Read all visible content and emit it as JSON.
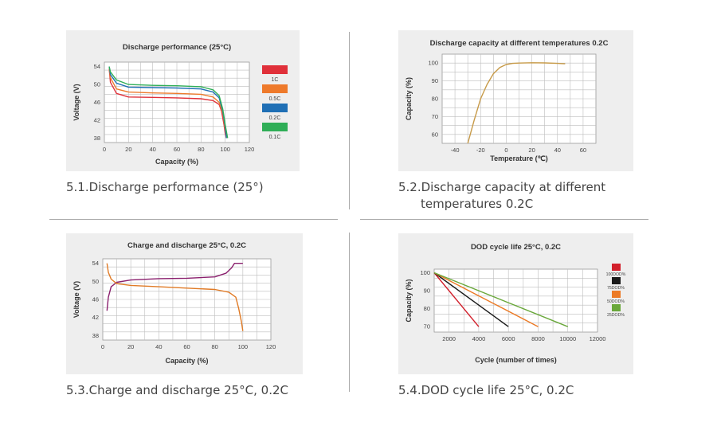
{
  "charts": [
    {
      "caption": "5.1.Discharge performance (25°)",
      "chart_data": {
        "type": "line",
        "title": "Discharge performance (25°C)",
        "xlabel": "Capacity (%)",
        "ylabel": "Voltage (V)",
        "xlim": [
          0,
          120
        ],
        "ylim": [
          37,
          55
        ],
        "xticks": [
          0,
          20,
          40,
          60,
          80,
          100,
          120
        ],
        "yticks": [
          38,
          42,
          46,
          50,
          54
        ],
        "legend": "right",
        "series": [
          {
            "name": "1C",
            "color": "#e0303a",
            "x": [
              4,
              5,
              10,
              20,
              40,
              60,
              80,
              90,
              95,
              97,
              99,
              100,
              101
            ],
            "y": [
              53.5,
              50.5,
              48.0,
              47.2,
              47.1,
              47.0,
              46.8,
              46.4,
              45.5,
              44.0,
              41.0,
              39.0,
              38.0
            ]
          },
          {
            "name": "0.5C",
            "color": "#ee7a2b",
            "x": [
              4,
              5,
              10,
              20,
              40,
              60,
              80,
              90,
              95,
              98,
              100,
              101
            ],
            "y": [
              53.5,
              51.5,
              49.0,
              48.3,
              48.1,
              48.0,
              47.8,
              47.2,
              46.0,
              43.5,
              40.0,
              38.0
            ]
          },
          {
            "name": "0.2C",
            "color": "#1f6fb5",
            "x": [
              4,
              5,
              10,
              20,
              40,
              60,
              80,
              90,
              95,
              98,
              100,
              101
            ],
            "y": [
              54.0,
              52.2,
              50.3,
              49.4,
              49.3,
              49.2,
              49.0,
              48.3,
              47.0,
              44.0,
              40.5,
              38.0
            ]
          },
          {
            "name": "0.1C",
            "color": "#2fae57",
            "x": [
              4,
              5,
              10,
              20,
              40,
              60,
              80,
              90,
              95,
              98,
              100,
              102
            ],
            "y": [
              54.0,
              52.8,
              51.0,
              50.0,
              49.8,
              49.7,
              49.5,
              48.8,
              47.5,
              44.5,
              41.0,
              38.0
            ]
          }
        ]
      }
    },
    {
      "caption": "5.2.Discharge capacity at different",
      "caption2": "temperatures 0.2C",
      "chart_data": {
        "type": "line",
        "title": "Discharge capacity at different temperatures 0.2C",
        "xlabel": "Temperature (℃)",
        "ylabel": "Capacity (%)",
        "xlim": [
          -50,
          70
        ],
        "ylim": [
          55,
          105
        ],
        "xticks": [
          -40,
          -20,
          0,
          20,
          40,
          60
        ],
        "yticks": [
          60,
          70,
          80,
          90,
          100
        ],
        "series": [
          {
            "name": "",
            "color": "#c79a48",
            "x": [
              -30,
              -25,
              -20,
              -15,
              -10,
              -5,
              0,
              5,
              10,
              20,
              30,
              40,
              46
            ],
            "y": [
              55,
              68,
              80,
              88,
              94,
              97.5,
              99.2,
              99.8,
              100,
              100.2,
              100.1,
              99.8,
              99.6
            ]
          }
        ]
      }
    },
    {
      "caption": "5.3.Charge and discharge 25°C, 0.2C",
      "chart_data": {
        "type": "line",
        "title": "Charge and discharge 25°C, 0.2C",
        "xlabel": "Capacity (%)",
        "ylabel": "Voltage (V)",
        "xlim": [
          0,
          120
        ],
        "ylim": [
          37,
          55
        ],
        "xticks": [
          0,
          20,
          40,
          60,
          80,
          100,
          120
        ],
        "yticks": [
          38,
          42,
          46,
          50,
          54
        ],
        "series": [
          {
            "name": "",
            "color": "#8a1f6d",
            "x": [
              3,
              4,
              6,
              10,
              20,
              40,
              60,
              80,
              88,
              92,
              94,
              96,
              100
            ],
            "y": [
              43.5,
              46.5,
              48.8,
              49.8,
              50.3,
              50.6,
              50.7,
              51.0,
              51.8,
              53.0,
              54.0,
              54.0,
              54.0
            ]
          },
          {
            "name": "",
            "color": "#e07a25",
            "x": [
              3,
              4,
              6,
              10,
              20,
              40,
              60,
              80,
              90,
              95,
              97,
              99,
              100
            ],
            "y": [
              54.0,
              52.0,
              50.5,
              49.5,
              49.1,
              48.8,
              48.5,
              48.2,
              47.6,
              46.5,
              44.0,
              41.0,
              39.0
            ]
          }
        ]
      }
    },
    {
      "caption": "5.4.DOD cycle life 25°C, 0.2C",
      "chart_data": {
        "type": "line",
        "title": "DOD cycle life 25°C, 0.2C",
        "xlabel": "Cycle (number of times)",
        "ylabel": "Capacity (%)",
        "xlim": [
          1000,
          12000
        ],
        "ylim": [
          67,
          102
        ],
        "xticks": [
          2000,
          4000,
          6000,
          8000,
          10000,
          12000
        ],
        "yticks": [
          70,
          80,
          90,
          100
        ],
        "legend": "right",
        "series": [
          {
            "name": "100DOD%",
            "color": "#d21f2b",
            "x": [
              1000,
              4000
            ],
            "y": [
              100,
              70
            ]
          },
          {
            "name": "75DOD%",
            "color": "#1a1a1a",
            "x": [
              1000,
              6000
            ],
            "y": [
              100,
              70
            ]
          },
          {
            "name": "50DOD%",
            "color": "#ec7a25",
            "x": [
              1000,
              8000
            ],
            "y": [
              100,
              70
            ]
          },
          {
            "name": "25DOD%",
            "color": "#6aa83b",
            "x": [
              1000,
              10000
            ],
            "y": [
              100,
              70
            ]
          }
        ]
      }
    }
  ]
}
